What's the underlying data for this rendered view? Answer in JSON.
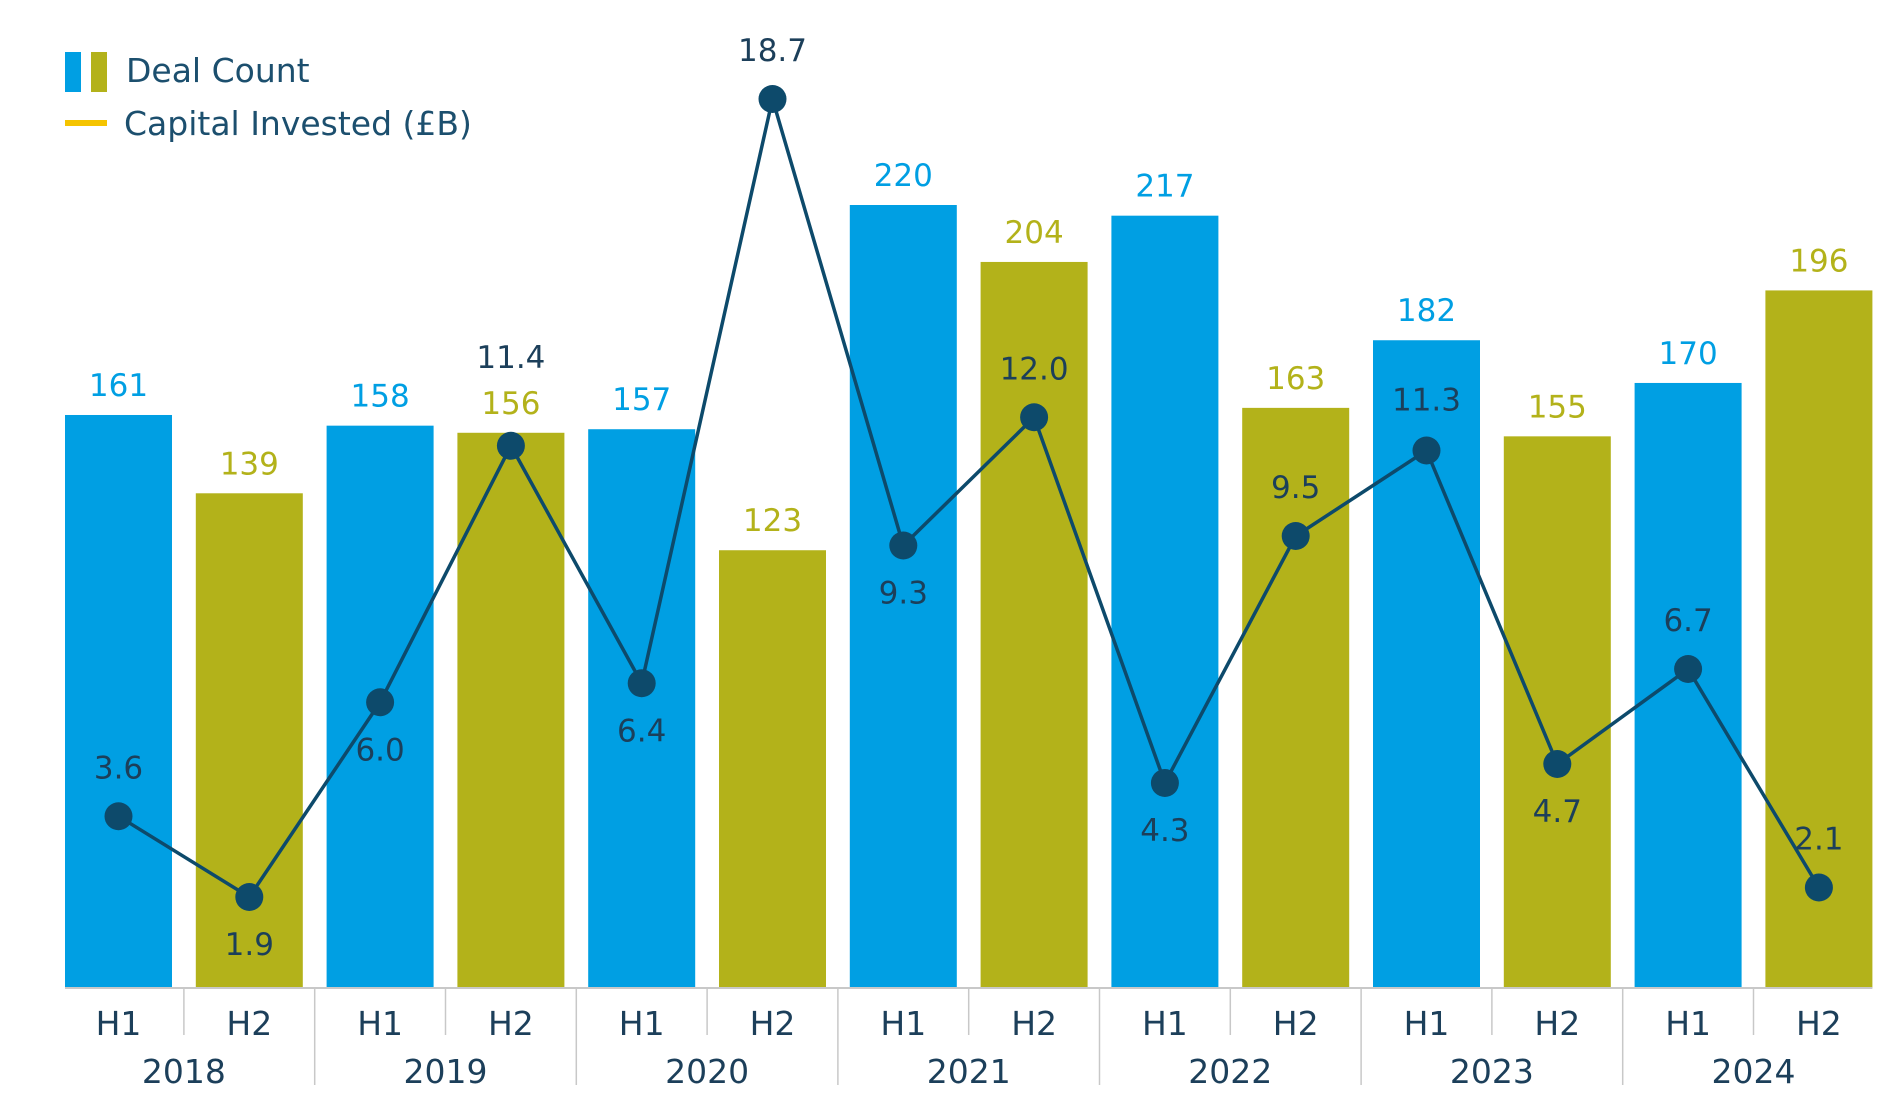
{
  "chart_data": {
    "type": "bar",
    "title": "",
    "xlabel": "",
    "ylabel": "",
    "categories": [
      "H1",
      "H2",
      "H1",
      "H2",
      "H1",
      "H2",
      "H1",
      "H2",
      "H1",
      "H2",
      "H1",
      "H2",
      "H1",
      "H2"
    ],
    "years": [
      "2018",
      "2019",
      "2020",
      "2021",
      "2022",
      "2023",
      "2024"
    ],
    "series": [
      {
        "name": "Deal Count",
        "type": "bar",
        "values": [
          161,
          139,
          158,
          156,
          157,
          123,
          220,
          204,
          217,
          163,
          182,
          155,
          170,
          196
        ],
        "colors": [
          "#009fe3",
          "#b3b21a"
        ]
      },
      {
        "name": "Capital Invested (£B)",
        "type": "line",
        "values": [
          3.6,
          1.9,
          6.0,
          11.4,
          6.4,
          18.7,
          9.3,
          12.0,
          4.3,
          9.5,
          11.3,
          4.7,
          6.7,
          2.1
        ],
        "labels": [
          "3.6",
          "1.9",
          "6.0",
          "11.4",
          "6.4",
          "18.7",
          "9.3",
          "12.0",
          "4.3",
          "9.5",
          "11.3",
          "4.7",
          "6.7",
          "2.1"
        ],
        "color": "#0d4a6b",
        "legend_color": "#f5c400"
      }
    ],
    "bar_ylim": [
      0,
      245
    ],
    "line_ylim": [
      -1,
      19.5
    ],
    "legend_position": "top-left",
    "grid": false
  }
}
